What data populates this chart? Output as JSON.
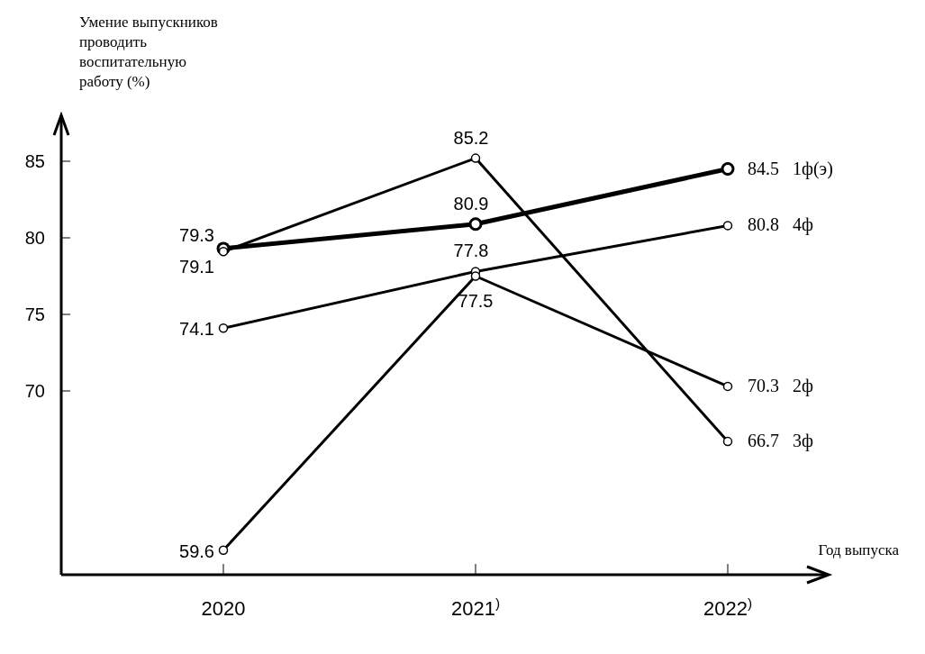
{
  "chart_data": {
    "type": "line",
    "ylabel": "Умение выпускников проводить воспитательную работу (%)",
    "xlabel": "Год выпуска",
    "categories": [
      "2020",
      "2021$^{)}$",
      "2022$^{)}$"
    ],
    "series": [
      {
        "name": "1ф(э)",
        "color": "#000000",
        "values": [
          79.3,
          80.9,
          84.5
        ]
      },
      {
        "name": "4ф",
        "color": "#000000",
        "values": [
          74.1,
          77.8,
          80.8
        ]
      },
      {
        "name": "2ф",
        "color": "#000000",
        "values": [
          59.6,
          77.5,
          70.3
        ]
      },
      {
        "name": "3ф",
        "color": "#000000",
        "values": [
          79.1,
          85.2,
          66.7
        ]
      }
    ],
    "ylim": [
      58,
      88
    ],
    "yticks": [
      70,
      75,
      80,
      85
    ],
    "grid": false,
    "marker": "circle",
    "line_style": "solid",
    "data_labels": true
  }
}
